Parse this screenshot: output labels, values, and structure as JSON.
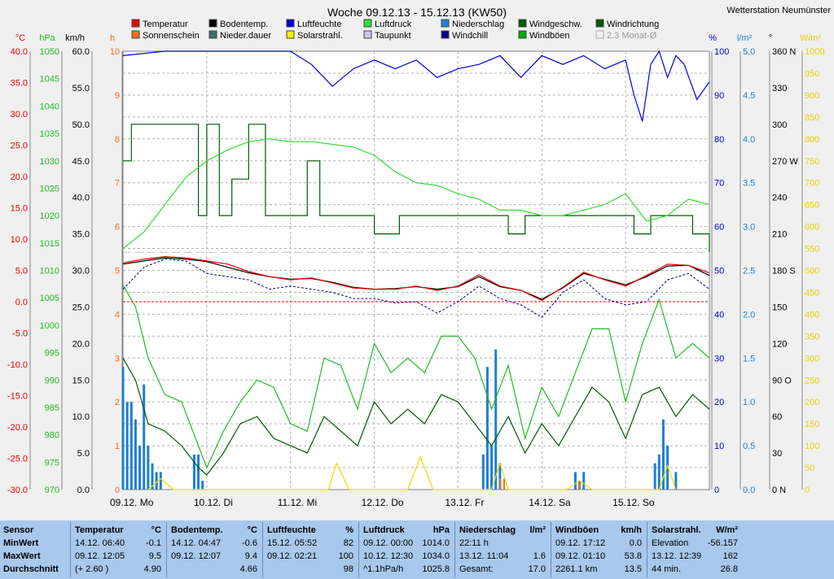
{
  "chart_data": {
    "type": "line",
    "title": "Woche 09.12.13 - 15.12.13 (KW50)",
    "station": "Wetterstation Neumünster",
    "legend": [
      {
        "label": "Temperatur",
        "color": "#ee0000"
      },
      {
        "label": "Bodentemp.",
        "color": "#000000"
      },
      {
        "label": "Luftfeuchte",
        "color": "#0000dd"
      },
      {
        "label": "Luftdruck",
        "color": "#33dd33"
      },
      {
        "label": "Niederschlag",
        "color": "#1e7fd0"
      },
      {
        "label": "Windgeschw.",
        "color": "#005a00"
      },
      {
        "label": "Windrichtung",
        "color": "#005a00"
      },
      {
        "label": "Sonnenschein",
        "color": "#f07020"
      },
      {
        "label": "Nieder.dauer",
        "color": "#3c6e6e"
      },
      {
        "label": "Solarstrahl.",
        "color": "#ffee00"
      },
      {
        "label": "Taupunkt",
        "color": "#c8c8f0"
      },
      {
        "label": "Windchill",
        "color": "#000088"
      },
      {
        "label": "Windböen",
        "color": "#00aa00"
      },
      {
        "label": "2.3 Monat-Ø",
        "color": "#b0b0b0"
      }
    ],
    "axes": {
      "temp": {
        "unit": "°C",
        "color": "#ee0000",
        "ticks": [
          "40.0",
          "35.0",
          "30.0",
          "25.0",
          "20.0",
          "15.0",
          "10.0",
          "5.0",
          "0.0",
          "-5.0",
          "-10.0",
          "-15.0",
          "-20.0",
          "-25.0",
          "-30.0"
        ]
      },
      "pressure": {
        "unit": "hPa",
        "color": "#22bb22",
        "ticks": [
          "1050",
          "1045",
          "1040",
          "1035",
          "1030",
          "1025",
          "1020",
          "1015",
          "1010",
          "1005",
          "1000",
          "995",
          "990",
          "985",
          "980",
          "975",
          "970"
        ]
      },
      "wind": {
        "unit": "km/h",
        "color": "#000000",
        "ticks": [
          "60.0",
          "55.0",
          "50.0",
          "45.0",
          "40.0",
          "35.0",
          "30.0",
          "25.0",
          "20.0",
          "15.0",
          "10.0",
          "5.0",
          "0.0"
        ]
      },
      "hours": {
        "unit": "h",
        "color": "#f07020",
        "ticks": [
          "10",
          "9",
          "8",
          "7",
          "6",
          "5",
          "4",
          "3",
          "2",
          "1",
          "0"
        ]
      },
      "humidity": {
        "unit": "%",
        "color": "#0000cc",
        "ticks": [
          "100",
          "90",
          "80",
          "70",
          "60",
          "50",
          "40",
          "30",
          "20",
          "10",
          "0"
        ]
      },
      "rain": {
        "unit": "l/m²",
        "color": "#1e7fd0",
        "ticks": [
          "5.0",
          "4.5",
          "4.0",
          "3.5",
          "3.0",
          "2.5",
          "2.0",
          "1.5",
          "1.0",
          "0.5",
          "0.0"
        ]
      },
      "direction": {
        "unit": "°",
        "color": "#000000",
        "ticks": [
          "360 N",
          "330",
          "300",
          "270 W",
          "240",
          "210",
          "180 S",
          "150",
          "120",
          "90 O",
          "60",
          "30",
          "0 N"
        ]
      },
      "solar": {
        "unit": "W/m²",
        "color": "#e8d000",
        "ticks": [
          "1000",
          "950",
          "900",
          "850",
          "800",
          "750",
          "700",
          "650",
          "600",
          "550",
          "500",
          "450",
          "400",
          "350",
          "300",
          "250",
          "200",
          "150",
          "100",
          "50",
          "0"
        ]
      }
    },
    "x_ticks": [
      "09.12. Mo",
      "10.12. Di",
      "11.12. Mi",
      "12.12. Do",
      "13.12. Fr",
      "14.12. Sa",
      "15.12. So"
    ],
    "series": [
      {
        "name": "Temperatur",
        "x": [
          0,
          0.25,
          0.5,
          0.75,
          1,
          1.25,
          1.5,
          1.75,
          2,
          2.25,
          2.5,
          2.75,
          3,
          3.25,
          3.5,
          3.75,
          4,
          4.25,
          4.5,
          4.75,
          5,
          5.25,
          5.5,
          5.75,
          6,
          6.25,
          6.5,
          6.75,
          7
        ],
        "values": [
          6.2,
          6.8,
          7.2,
          7.0,
          6.5,
          6.0,
          4.8,
          4.0,
          3.5,
          3.8,
          3.0,
          2.2,
          2.0,
          2.0,
          2.5,
          1.8,
          2.5,
          4.3,
          2.5,
          1.8,
          0.2,
          2.3,
          4.7,
          3.5,
          2.5,
          4.2,
          6.0,
          5.8,
          4.6
        ]
      },
      {
        "name": "Bodentemp.",
        "x": [
          0,
          0.25,
          0.5,
          0.75,
          1,
          1.25,
          1.5,
          1.75,
          2,
          2.25,
          2.5,
          2.75,
          3,
          3.25,
          3.5,
          3.75,
          4,
          4.25,
          4.5,
          4.75,
          5,
          5.25,
          5.5,
          5.75,
          6,
          6.25,
          6.5,
          6.75,
          7
        ],
        "values": [
          6.0,
          6.5,
          7.0,
          6.8,
          6.4,
          5.5,
          4.6,
          4.0,
          3.6,
          3.7,
          3.1,
          2.3,
          2.0,
          2.1,
          2.4,
          2.0,
          2.4,
          4.0,
          2.4,
          1.8,
          0.4,
          2.2,
          4.5,
          3.6,
          2.7,
          4.0,
          5.7,
          5.8,
          4.2
        ]
      },
      {
        "name": "Windchill",
        "x": [
          0,
          0.25,
          0.5,
          0.75,
          1,
          1.25,
          1.5,
          1.75,
          2,
          2.25,
          2.5,
          2.75,
          3,
          3.25,
          3.5,
          3.75,
          4,
          4.25,
          4.5,
          4.75,
          5,
          5.25,
          5.5,
          5.75,
          6,
          6.25,
          6.5,
          6.75,
          7
        ],
        "values": [
          2.0,
          5.5,
          6.8,
          6.5,
          4.5,
          4.0,
          3.5,
          2.0,
          2.5,
          2.0,
          1.5,
          0.5,
          0.5,
          -0.2,
          0.0,
          -1.8,
          0.0,
          2.5,
          0.5,
          -0.5,
          -2.5,
          1.5,
          3.5,
          0.5,
          -0.5,
          0.0,
          3.5,
          4.5,
          2.0
        ]
      },
      {
        "name": "Luftfeuchte",
        "x": [
          0,
          0.5,
          1,
          1.5,
          2,
          2.25,
          2.5,
          2.75,
          3,
          3.25,
          3.5,
          3.75,
          4,
          4.25,
          4.5,
          4.75,
          5,
          5.25,
          5.5,
          5.75,
          6,
          6.1,
          6.2,
          6.3,
          6.4,
          6.5,
          6.6,
          6.7,
          6.85,
          7
        ],
        "values": [
          99,
          100,
          100,
          100,
          100,
          97,
          92,
          96,
          98,
          96,
          98,
          94,
          96,
          97,
          99,
          94,
          99,
          97,
          99,
          96,
          98,
          90,
          84,
          97,
          100,
          94,
          99,
          97,
          89,
          93
        ]
      },
      {
        "name": "Luftdruck",
        "x": [
          0,
          0.25,
          0.5,
          0.75,
          1,
          1.25,
          1.5,
          1.75,
          2,
          2.25,
          2.5,
          2.75,
          3,
          3.25,
          3.5,
          3.75,
          4,
          4.25,
          4.5,
          4.75,
          5,
          5.25,
          5.5,
          5.75,
          6,
          6.25,
          6.5,
          6.75,
          7
        ],
        "values": [
          1014,
          1017,
          1022,
          1027,
          1030,
          1032,
          1033.5,
          1034,
          1033.5,
          1033.5,
          1033,
          1032.5,
          1031,
          1028,
          1026,
          1025.5,
          1024,
          1023,
          1021,
          1021,
          1020,
          1020,
          1021,
          1022,
          1024,
          1019,
          1020,
          1023,
          1022
        ]
      },
      {
        "name": "Windgeschw.",
        "x": [
          0,
          0.15,
          0.3,
          0.5,
          0.7,
          0.9,
          1,
          1.2,
          1.4,
          1.6,
          1.8,
          2,
          2.2,
          2.4,
          2.6,
          2.8,
          3,
          3.2,
          3.4,
          3.6,
          3.8,
          4,
          4.2,
          4.4,
          4.6,
          4.8,
          5,
          5.2,
          5.4,
          5.6,
          5.8,
          6,
          6.2,
          6.4,
          6.6,
          6.8,
          7
        ],
        "values": [
          18,
          15,
          9,
          8,
          6,
          3,
          2,
          5,
          9,
          10,
          7,
          6,
          5,
          10,
          8,
          6,
          12,
          9,
          11,
          9,
          13,
          12,
          9,
          6,
          10,
          5,
          9,
          6,
          10,
          14,
          12,
          7,
          13,
          14,
          10,
          13,
          11
        ]
      },
      {
        "name": "Windböen",
        "x": [
          0,
          0.15,
          0.3,
          0.5,
          0.7,
          0.9,
          1,
          1.2,
          1.4,
          1.6,
          1.8,
          2,
          2.2,
          2.4,
          2.6,
          2.8,
          3,
          3.2,
          3.4,
          3.6,
          3.8,
          4,
          4.2,
          4.4,
          4.6,
          4.8,
          5,
          5.2,
          5.4,
          5.6,
          5.8,
          6,
          6.2,
          6.4,
          6.6,
          6.8,
          7
        ],
        "values": [
          28,
          25,
          18,
          13,
          12,
          6,
          3,
          8,
          12,
          15,
          14,
          9,
          8,
          18,
          17,
          11,
          20,
          16,
          18,
          16,
          21,
          21,
          18,
          11,
          17,
          7,
          14,
          10,
          16,
          22,
          22,
          12,
          20,
          26,
          18,
          20,
          18
        ]
      },
      {
        "name": "Windrichtung",
        "x": [
          0,
          0.1,
          0.3,
          0.6,
          0.8,
          0.9,
          1,
          1.15,
          1.3,
          1.5,
          1.7,
          2,
          2.2,
          2.35,
          2.5,
          2.9,
          3,
          3.3,
          3.6,
          4,
          4.4,
          4.6,
          4.8,
          5,
          5.2,
          5.5,
          5.9,
          6.1,
          6.3,
          6.6,
          6.8,
          7
        ],
        "values": [
          270,
          300,
          300,
          300,
          300,
          225,
          300,
          225,
          255,
          300,
          225,
          225,
          270,
          225,
          225,
          225,
          210,
          225,
          225,
          225,
          225,
          210,
          225,
          225,
          225,
          225,
          225,
          210,
          225,
          225,
          210,
          195
        ]
      },
      {
        "name": "Niederschlag",
        "x": [
          0,
          0.05,
          0.1,
          0.15,
          0.2,
          0.25,
          0.3,
          0.35,
          0.4,
          0.45,
          0.85,
          0.9,
          0.95,
          4.3,
          4.35,
          4.4,
          4.45,
          4.5,
          5.4,
          5.45,
          5.5,
          6.35,
          6.4,
          6.45,
          6.5,
          6.6
        ],
        "values": [
          1.4,
          1.0,
          1.0,
          0.8,
          0.5,
          1.2,
          0.5,
          0.3,
          0.2,
          0.2,
          0.4,
          0.4,
          0.1,
          0.4,
          1.4,
          0.5,
          1.6,
          0.3,
          0.2,
          0.1,
          0.2,
          0.3,
          0.4,
          0.8,
          0.5,
          0.2
        ]
      },
      {
        "name": "Solarstrahl.",
        "x": [
          0.3,
          0.45,
          0.6,
          2.45,
          2.55,
          2.7,
          3.4,
          3.55,
          3.7,
          4.4,
          4.5,
          4.6,
          5.3,
          5.45,
          5.6,
          6.4,
          6.5,
          6.6
        ],
        "values": [
          0,
          25,
          0,
          0,
          60,
          0,
          0,
          75,
          0,
          0,
          60,
          0,
          0,
          20,
          0,
          0,
          55,
          0
        ]
      },
      {
        "name": "Sonnenschein",
        "x": [
          4.5,
          4.55,
          5.45
        ],
        "values": [
          0.25,
          0.25,
          0.15
        ]
      }
    ],
    "monthly_avg": 5.3,
    "frost_line": 0.0
  },
  "table": [
    {
      "header": [
        "Sensor",
        "",
        ""
      ],
      "rows": [
        [
          "MinWert",
          "",
          ""
        ],
        [
          "MaxWert",
          "",
          ""
        ],
        [
          "Durchschnitt",
          "",
          ""
        ]
      ]
    },
    {
      "header": [
        "Temperatur",
        "°C",
        ""
      ],
      "rows": [
        [
          "14.12.  06:40",
          "-0.1",
          ""
        ],
        [
          "09.12.  12:05",
          "9.5",
          ""
        ],
        [
          "(+ 2.60 )",
          "4.90",
          ""
        ]
      ]
    },
    {
      "header": [
        "Bodentemp.",
        "°C",
        ""
      ],
      "rows": [
        [
          "14.12.  04:47",
          "-0.6",
          ""
        ],
        [
          "09.12.  12:07",
          "9.4",
          ""
        ],
        [
          "",
          "4.66",
          ""
        ]
      ]
    },
    {
      "header": [
        "Luftfeuchte",
        "%",
        ""
      ],
      "rows": [
        [
          "15.12.  05:52",
          "82",
          ""
        ],
        [
          "09.12.  02:21",
          "100",
          ""
        ],
        [
          "",
          "98",
          ""
        ]
      ]
    },
    {
      "header": [
        "Luftdruck",
        "hPa",
        ""
      ],
      "rows": [
        [
          "09.12.  00:00",
          "1014.0",
          ""
        ],
        [
          "10.12.  12:30",
          "1034.0",
          ""
        ],
        [
          "^1.1hPa/h",
          "1025.8",
          ""
        ]
      ]
    },
    {
      "header": [
        "Niederschlag",
        "l/m²",
        ""
      ],
      "rows": [
        [
          "22:11 h",
          "",
          ""
        ],
        [
          "13.12.  11:04",
          "1.6",
          ""
        ],
        [
          "Gesamt:",
          "17.0",
          ""
        ]
      ]
    },
    {
      "header": [
        "Windböen",
        "km/h",
        ""
      ],
      "rows": [
        [
          "09.12.  17:12",
          "0.0",
          ""
        ],
        [
          "09.12.  01:10",
          "53.8",
          ""
        ],
        [
          "2261.1 km",
          "13.5",
          ""
        ]
      ]
    },
    {
      "header": [
        "Solarstrahl.",
        "W/m²",
        ""
      ],
      "rows": [
        [
          "Elevation",
          "-56.157",
          ""
        ],
        [
          "13.12.  12:39",
          "162",
          ""
        ],
        [
          "44 min.",
          "26.8",
          ""
        ]
      ]
    }
  ]
}
